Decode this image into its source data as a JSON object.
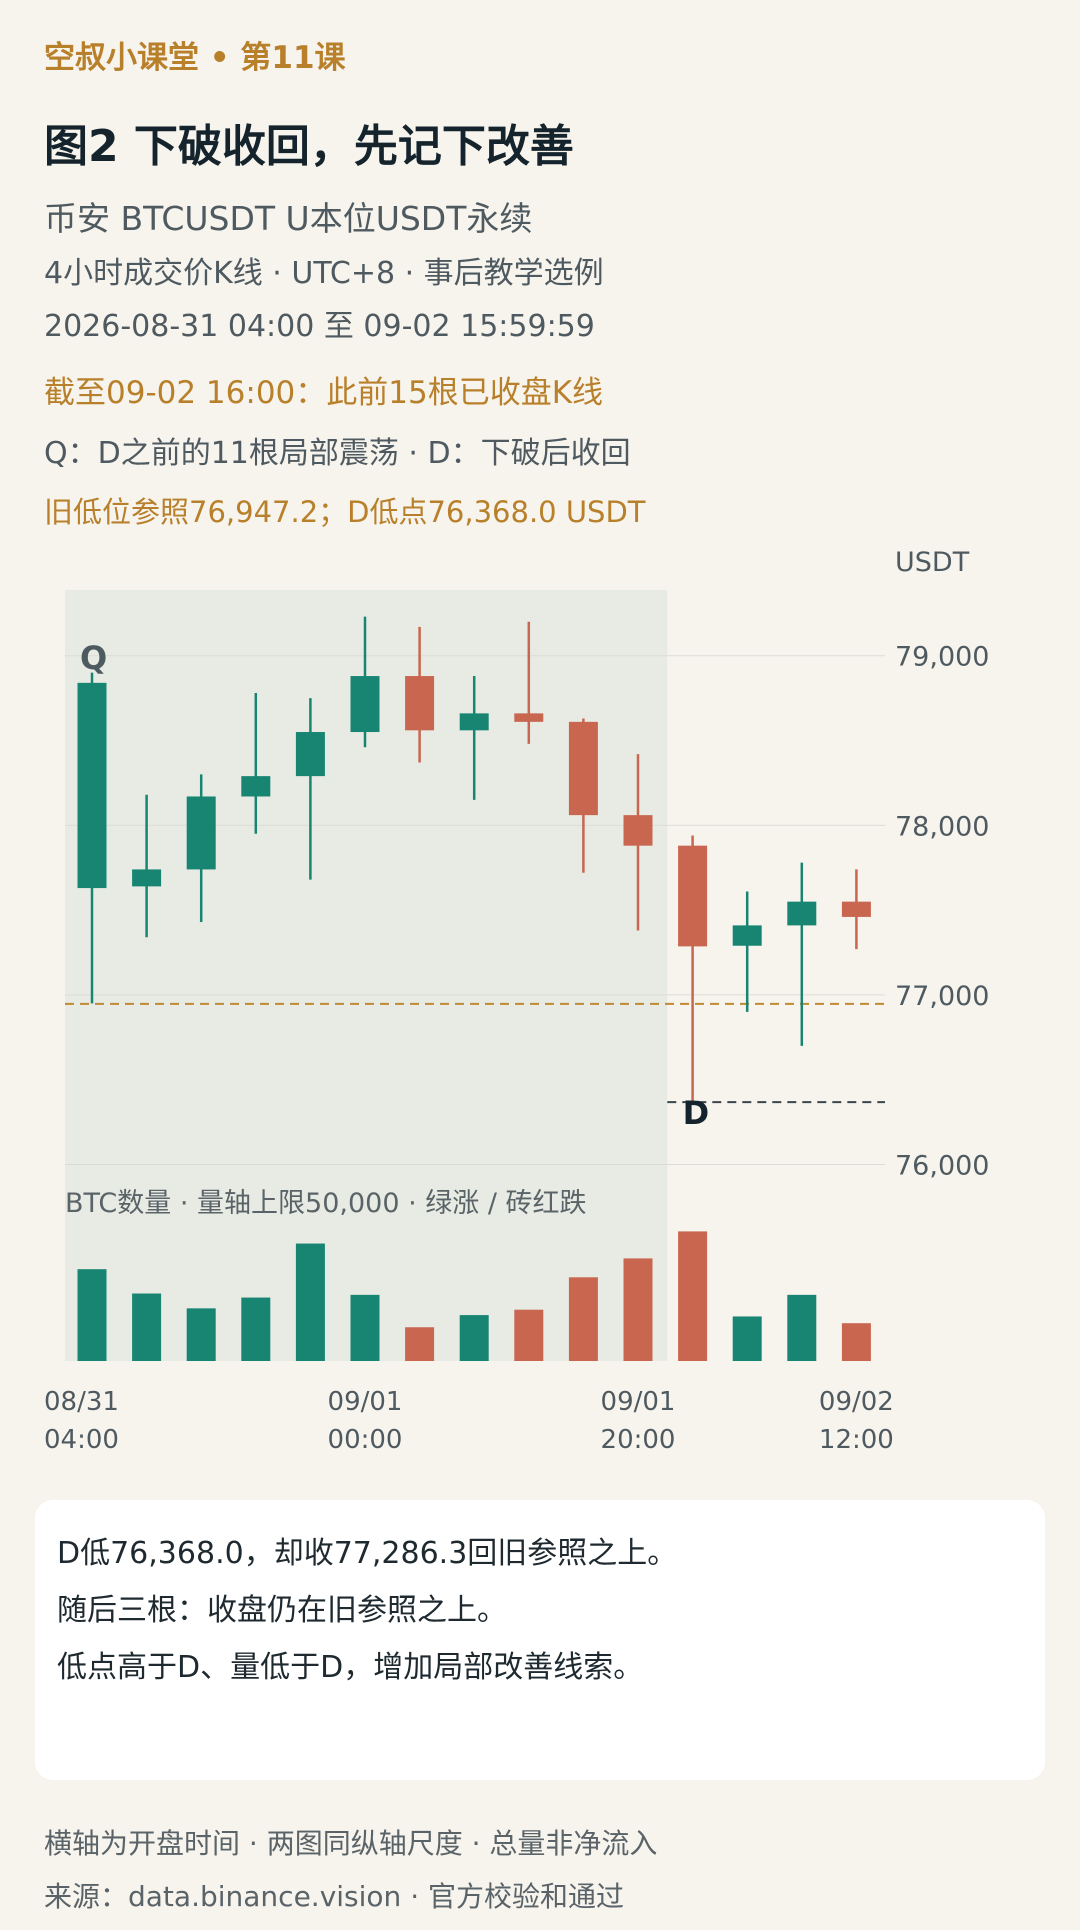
{
  "header": {
    "series_label": "空叔小课堂 • 第11课",
    "title": "图2  下破收回，先记下改善",
    "meta_lines": [
      "币安 BTCUSDT U本位USDT永续",
      "4小时成交价K线 · UTC+8 · 事后教学选例",
      "2026-08-31 04:00 至 09-02 15:59:59",
      "截至09-02 16:00：此前15根已收盘K线",
      "Q：D之前的11根局部震荡 · D：下破后收回",
      "旧低位参照76,947.2；D低点76,368.0 USDT"
    ]
  },
  "chart_data": {
    "type": "candlestick",
    "price_unit": "USDT",
    "ylim": [
      75850,
      79800
    ],
    "yticks": [
      76000,
      77000,
      78000,
      79000
    ],
    "ytick_labels": [
      "76,000",
      "77,000",
      "78,000",
      "79,000"
    ],
    "x_tick_labels": [
      {
        "index": 0,
        "line1": "08/31",
        "line2": "04:00"
      },
      {
        "index": 5,
        "line1": "09/01",
        "line2": "00:00"
      },
      {
        "index": 10,
        "line1": "09/01",
        "line2": "20:00"
      },
      {
        "index": 14,
        "line1": "09/02",
        "line2": "12:00"
      }
    ],
    "candles": [
      {
        "o": 77630,
        "h": 78900,
        "l": 76950,
        "c": 78840
      },
      {
        "o": 77640,
        "h": 78180,
        "l": 77340,
        "c": 77740
      },
      {
        "o": 77740,
        "h": 78300,
        "l": 77430,
        "c": 78170
      },
      {
        "o": 78170,
        "h": 78780,
        "l": 77950,
        "c": 78290
      },
      {
        "o": 78290,
        "h": 78750,
        "l": 77680,
        "c": 78550
      },
      {
        "o": 78550,
        "h": 79230,
        "l": 78460,
        "c": 78880
      },
      {
        "o": 78880,
        "h": 79170,
        "l": 78370,
        "c": 78560
      },
      {
        "o": 78560,
        "h": 78880,
        "l": 78150,
        "c": 78660
      },
      {
        "o": 78660,
        "h": 79200,
        "l": 78480,
        "c": 78610
      },
      {
        "o": 78610,
        "h": 78630,
        "l": 77720,
        "c": 78060
      },
      {
        "o": 78060,
        "h": 78420,
        "l": 77380,
        "c": 77880
      },
      {
        "o": 77880,
        "h": 77940,
        "l": 76368.0,
        "c": 77286.3
      },
      {
        "o": 77290,
        "h": 77610,
        "l": 76900,
        "c": 77410
      },
      {
        "o": 77410,
        "h": 77780,
        "l": 76700,
        "c": 77550
      },
      {
        "o": 77550,
        "h": 77740,
        "l": 77270,
        "c": 77460
      }
    ],
    "volume": {
      "title": "BTC数量 · 量轴上限50,000 · 绿涨 / 砖红跌",
      "max": 50000,
      "values": [
        34000,
        25000,
        19500,
        23500,
        43500,
        24500,
        12500,
        17000,
        19000,
        31000,
        38000,
        48000,
        16500,
        24500,
        14000
      ]
    },
    "reference_level": 76947.2,
    "d_low": 76368.0,
    "zone_q": {
      "label": "Q",
      "start_index": 0,
      "end_index": 10
    },
    "marker_d": {
      "label": "D",
      "index": 11
    },
    "colors": {
      "up": "#178572",
      "down": "#c8664f",
      "zone": "#e8ebe4",
      "reference": "#c08a33",
      "grid": "#dcdcd6"
    }
  },
  "note": {
    "lines": [
      "D低76,368.0，却收77,286.3回旧参照之上。",
      "随后三根：收盘仍在旧参照之上。",
      "低点高于D、量低于D，增加局部改善线索。"
    ]
  },
  "footer": {
    "lines": [
      "横轴为开盘时间 · 两图同纵轴尺度 · 总量非净流入",
      "来源：data.binance.vision · 官方校验和通过"
    ]
  }
}
